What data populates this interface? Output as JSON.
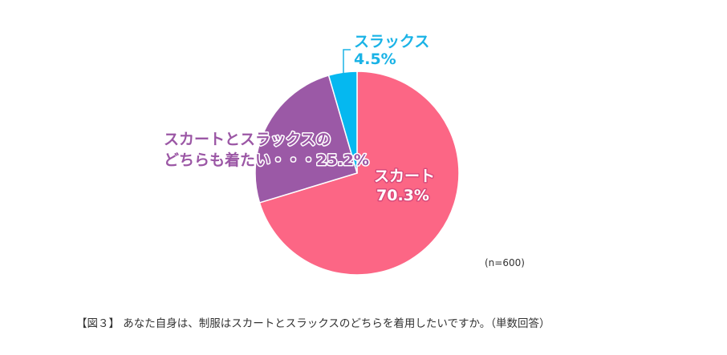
{
  "chart_data": {
    "type": "pie",
    "slices": [
      {
        "label": "スカート",
        "value": 70.3,
        "value_text": "70.3%",
        "color": "#fc6685"
      },
      {
        "label": "スカートとスラックスのどちらも着たい",
        "line1": "スカートとスラックスの",
        "line2": "どちらも着たい・・・25.2%",
        "value": 25.2,
        "color": "#9b59a6"
      },
      {
        "label": "スラックス",
        "value": 4.5,
        "value_text": "4.5%",
        "color": "#05b8f0"
      }
    ],
    "start_angle_deg": 0,
    "direction": "clockwise",
    "sample_note": "(n=600)"
  },
  "caption": "【図３】 あなた自身は、制服はスカートとスラックスのどちらを着用したいですか。（単数回答）"
}
